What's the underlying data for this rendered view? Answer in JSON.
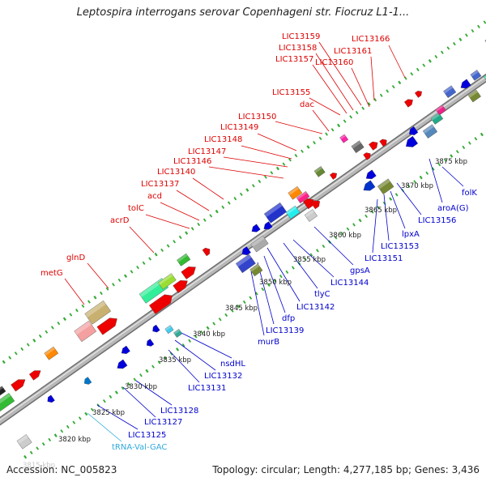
{
  "title": "Leptospira interrogans serovar Copenhageni str. Fiocruz L1-1...",
  "footer": {
    "accession": "Accession: NC_005823",
    "stats": "Topology: circular; Length: 4,277,185 bp; Genes: 3,436"
  },
  "colors": {
    "label_top": "#dd0000",
    "label_bottom": "#0000cc",
    "label_trna": "#33aadd",
    "backbone": "#9a9a9a",
    "tick": "#33aa33"
  },
  "kbp_labels": [
    "3820 kbp",
    "3825 kbp",
    "3830 kbp",
    "3835 kbp",
    "3840 kbp",
    "3845 kbp",
    "3850 kbp",
    "3855 kbp",
    "3860 kbp",
    "3865 kbp",
    "3870 kbp",
    "3875 kbp"
  ],
  "partial_kbp_label": "3815 kbp",
  "top_gene_labels": [
    "metG",
    "glnD",
    "acrD",
    "tolC",
    "acd",
    "LIC13137",
    "LIC13140",
    "LIC13146",
    "LIC13147",
    "LIC13148",
    "LIC13149",
    "LIC13150",
    "dac",
    "LIC13155",
    "LIC13157",
    "LIC13158",
    "LIC13159",
    "LIC13160",
    "LIC13161",
    "LIC13166"
  ],
  "bottom_gene_labels": [
    "tRNA-Val-GAC",
    "LIC13125",
    "LIC13127",
    "LIC13128",
    "LIC13131",
    "LIC13132",
    "nsdHL",
    "murB",
    "LIC13139",
    "dfp",
    "LIC13142",
    "tlyC",
    "LIC13144",
    "gpsA",
    "LIC13151",
    "LIC13153",
    "lpxA",
    "LIC13156",
    "aroA(G)",
    "folK"
  ]
}
